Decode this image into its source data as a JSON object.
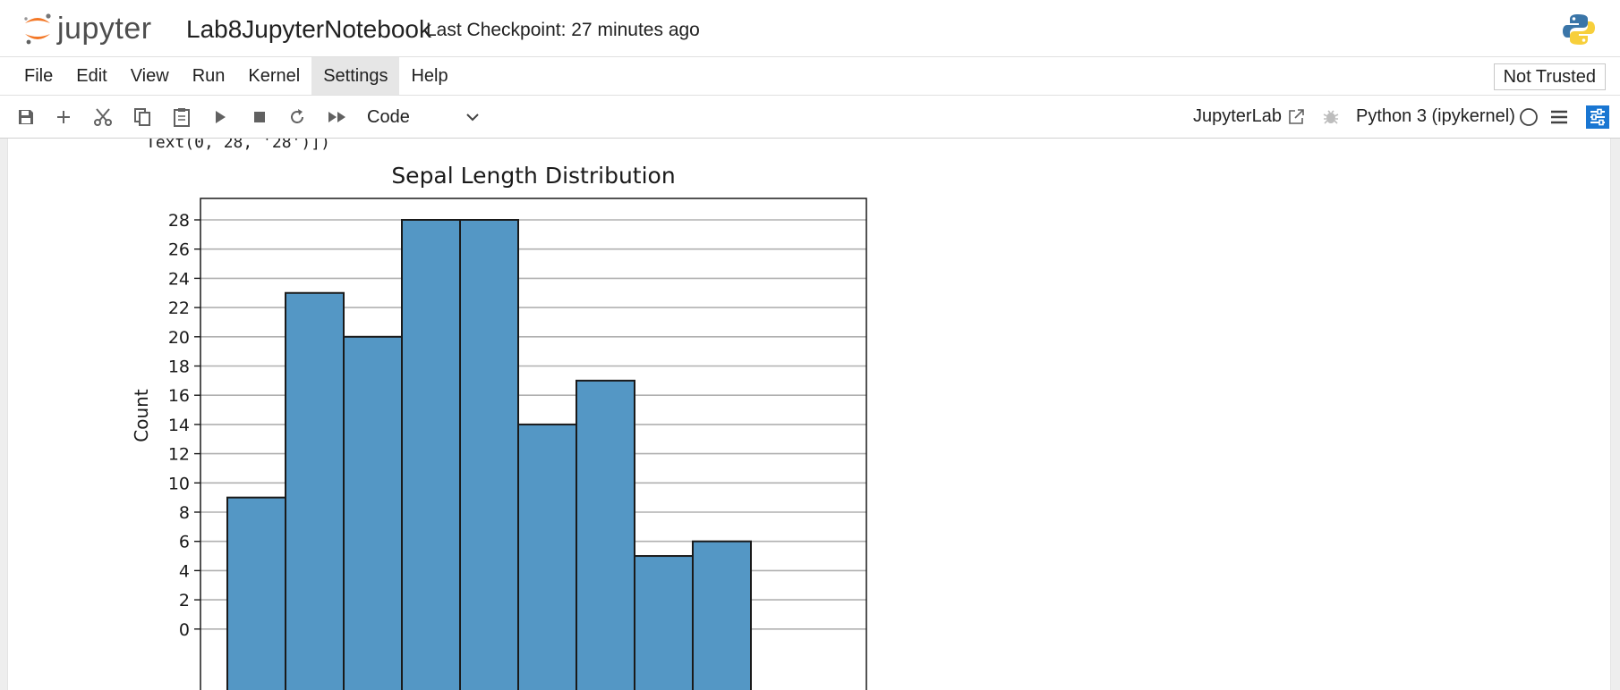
{
  "header": {
    "logo_text": "jupyter",
    "notebook_title": "Lab8JupyterNotebook",
    "checkpoint": "Last Checkpoint: 27 minutes ago"
  },
  "menu": {
    "items": [
      "File",
      "Edit",
      "View",
      "Run",
      "Kernel",
      "Settings",
      "Help"
    ],
    "active": "Settings",
    "trusted_label": "Not Trusted"
  },
  "toolbar": {
    "icons": [
      "save-icon",
      "add-icon",
      "cut-icon",
      "copy-icon",
      "paste-icon",
      "run-icon",
      "stop-icon",
      "restart-icon",
      "fast-forward-icon"
    ],
    "cell_type": "Code",
    "jupyterlab_label": "JupyterLab",
    "kernel_name": "Python 3 (ipykernel)"
  },
  "output": {
    "text_line": "Text(0, 28, '28')])"
  },
  "chart_data": {
    "type": "bar",
    "title": "Sepal Length Distribution",
    "ylabel": "Count",
    "xlabel": "",
    "values": [
      9,
      23,
      20,
      28,
      28,
      14,
      17,
      5,
      6
    ],
    "yticks": [
      0,
      2,
      4,
      6,
      8,
      10,
      12,
      14,
      16,
      18,
      20,
      22,
      24,
      26,
      28
    ],
    "ylim": [
      0,
      29.4
    ],
    "grid": "horizontal",
    "colors": {
      "bar": "#5497c5",
      "edge": "#1a1a1a",
      "grid": "#b0b0b0"
    }
  }
}
